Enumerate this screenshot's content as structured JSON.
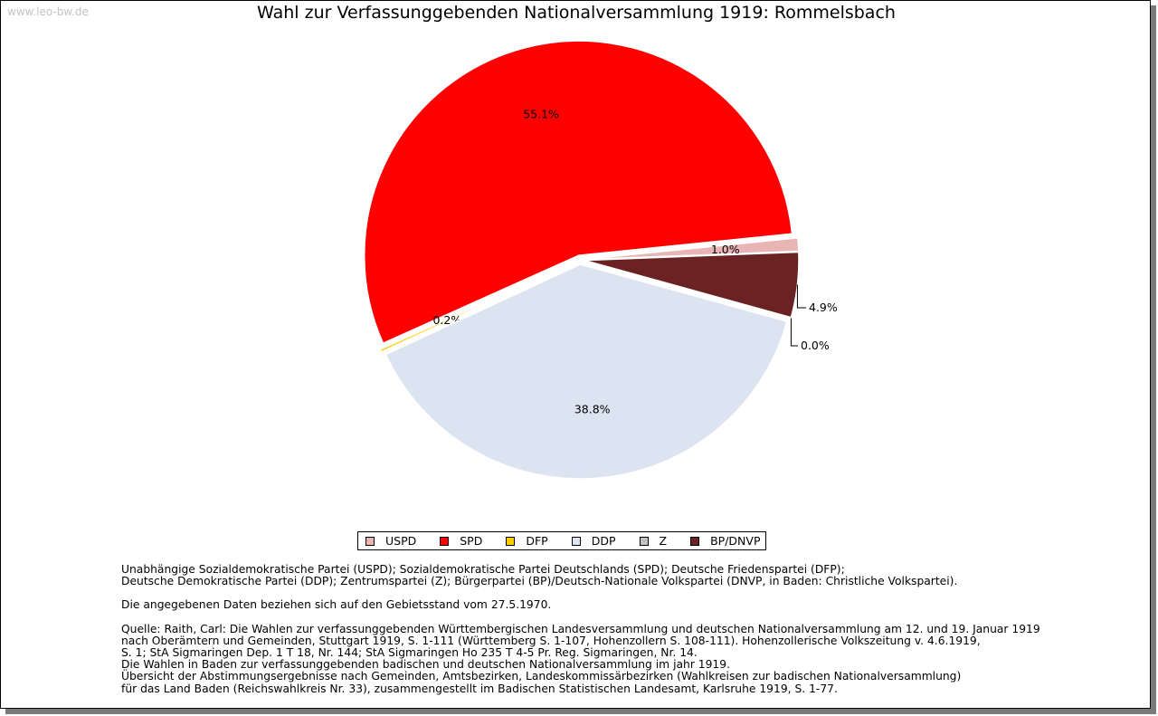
{
  "watermark": "www.leo-bw.de",
  "chart_data": {
    "type": "pie",
    "title": "Wahl zur Verfassunggebenden Nationalversammlung 1919: Rommelsbach",
    "slices": [
      {
        "name": "USPD",
        "value": 1.0,
        "label": "1.0%",
        "color": "#e8b4b4"
      },
      {
        "name": "SPD",
        "value": 55.1,
        "label": "55.1%",
        "color": "#ff0000"
      },
      {
        "name": "DFP",
        "value": 0.2,
        "label": "0.2%",
        "color": "#ffcc00"
      },
      {
        "name": "DDP",
        "value": 38.8,
        "label": "38.8%",
        "color": "#dbe4f0"
      },
      {
        "name": "Z",
        "value": 0.0,
        "label": "0.0%",
        "color": "#c0c0c0"
      },
      {
        "name": "BP/DNVP",
        "value": 4.9,
        "label": "4.9%",
        "color": "#6b2222"
      }
    ],
    "legend_position": "bottom"
  },
  "notes": {
    "parties": [
      "Unabhängige Sozialdemokratische Partei (USPD); Sozialdemokratische Partei Deutschlands (SPD); Deutsche Friedenspartei (DFP);",
      "Deutsche Demokratische Partei (DDP); Zentrumspartei (Z); Bürgerpartei (BP)/Deutsch-Nationale Volkspartei (DNVP, in Baden: Christliche Volkspartei)."
    ],
    "territory": "Die angegebenen Daten beziehen sich auf den Gebietsstand vom 27.5.1970.",
    "source": [
      "Quelle: Raith, Carl: Die Wahlen zur verfassunggebenden Württembergischen Landesversammlung und deutschen Nationalversammlung am 12. und 19. Januar 1919",
      "nach Oberämtern und Gemeinden, Stuttgart 1919, S. 1-111 (Württemberg S. 1-107, Hohenzollern S. 108-111). Hohenzollerische Volkszeitung v. 4.6.1919,",
      "S. 1; StA Sigmaringen Dep. 1 T 18, Nr. 144; StA Sigmaringen Ho 235 T 4-5 Pr. Reg. Sigmaringen, Nr. 14.",
      "Die Wahlen in Baden zur verfassunggebenden badischen und deutschen Nationalversammlung im jahr 1919.",
      "Übersicht der Abstimmungsergebnisse nach Gemeinden, Amtsbezirken, Landeskommissärbezirken (Wahlkreisen zur badischen Nationalversammlung)",
      "für das Land Baden (Reichswahlkreis Nr. 33), zusammengestellt im Badischen Statistischen Landesamt, Karlsruhe 1919, S. 1-77."
    ]
  }
}
